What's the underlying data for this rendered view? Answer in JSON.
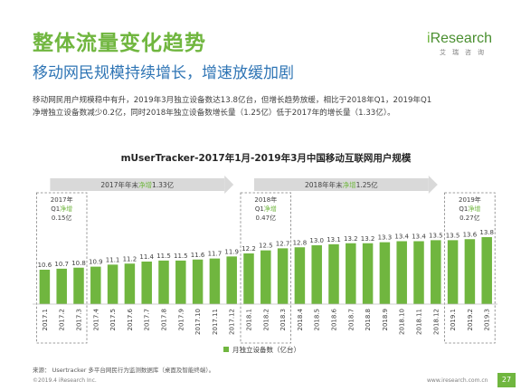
{
  "header": {
    "title": "整体流量变化趋势",
    "subtitle": "移动网民规模持续增长，增速放缓加剧"
  },
  "logo": {
    "word_prefix": "i",
    "word_rest": "Research",
    "sub": "艾瑞咨询"
  },
  "description": {
    "line1": "移动网民用户规模稳中有升，2019年3月独立设备数达13.8亿台，但增长趋势放缓，相比于2018年Q1，2019年Q1",
    "line2": "净增独立设备数减少0.2亿，同时2018年独立设备数增长量（1.25亿）低于2017年的增长量（1.33亿）。"
  },
  "colors": {
    "bar": "#70b63f",
    "title": "#70b63f",
    "subtitle": "#2f75b5",
    "banner": "#d9d9d9",
    "highlight": "#70b63f"
  },
  "chart_data": {
    "type": "bar",
    "title": "mUserTracker-2017年1月-2019年3月中国移动互联网用户规模",
    "categories": [
      "2017.1",
      "2017.2",
      "2017.3",
      "2017.4",
      "2017.5",
      "2017.6",
      "2017.7",
      "2017.8",
      "2017.9",
      "2017.10",
      "2017.11",
      "2017.12",
      "2018.1",
      "2018.2",
      "2018.3",
      "2018.4",
      "2018.5",
      "2018.6",
      "2018.7",
      "2018.8",
      "2018.9",
      "2018.10",
      "2018.11",
      "2018.12",
      "2019.1",
      "2019.2",
      "2019.3"
    ],
    "series": [
      {
        "name": "月独立设备数（亿台）",
        "values": [
          10.6,
          10.7,
          10.8,
          10.9,
          11.1,
          11.2,
          11.4,
          11.5,
          11.5,
          11.6,
          11.7,
          11.9,
          12.2,
          12.5,
          12.7,
          12.8,
          13.0,
          13.1,
          13.2,
          13.2,
          13.3,
          13.4,
          13.4,
          13.5,
          13.5,
          13.6,
          13.8
        ]
      }
    ],
    "value_labels": [
      "10.6",
      "10.7",
      "10.8",
      "10.9",
      "11.1",
      "11.2",
      "11.4",
      "11.5",
      "11.5",
      "11.6",
      "11.7",
      "11.9",
      "12.2",
      "12.5",
      "12.7",
      "12.8",
      "13.0",
      "13.1",
      "13.2",
      "13.2",
      "13.3",
      "13.4",
      "13.4",
      "13.5",
      "13.5",
      "13.6",
      "13.8"
    ],
    "legend": "bottom-center",
    "grid": false,
    "annotations": {
      "banners": [
        {
          "pre": "2017年年末",
          "hl": "净增",
          "post": "1.33亿",
          "from_index": 0,
          "to_index": 11
        },
        {
          "pre": "2018年年末",
          "hl": "净增",
          "post": "1.25亿",
          "from_index": 12,
          "to_index": 23
        }
      ],
      "boxes": [
        {
          "line1": "2017年",
          "line2_pre": "Q1",
          "line2_hl": "净增",
          "line3": "0.15亿",
          "from_index": 0,
          "to_index": 2
        },
        {
          "line1": "2018年",
          "line2_pre": "Q1",
          "line2_hl": "净增",
          "line3": "0.47亿",
          "from_index": 12,
          "to_index": 14
        },
        {
          "line1": "2019年",
          "line2_pre": "Q1",
          "line2_hl": "净增",
          "line3": "0.27亿",
          "from_index": 24,
          "to_index": 26
        }
      ]
    }
  },
  "footer": {
    "source": "来源：  Usertracker 多平台网民行为监测数据库（桌面及智能终端）。",
    "copyright": "©2019.4 iResearch Inc.",
    "website": "www.iresearch.com.cn",
    "page": "27"
  }
}
